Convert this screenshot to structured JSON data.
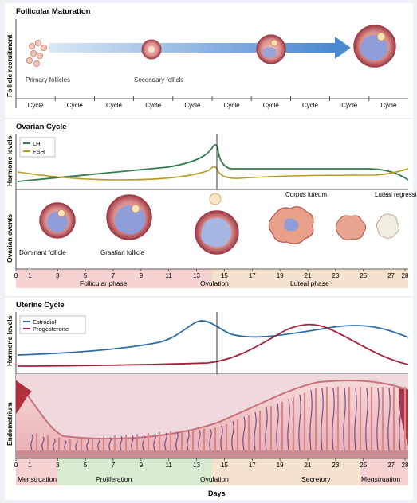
{
  "sections": {
    "follicular": {
      "title": "Follicular Maturation",
      "side_label": "Follicle recruitment",
      "labels": {
        "primary": "Primary follicles",
        "secondary": "Secondary follicle"
      },
      "cycles": [
        "Cycle",
        "Cycle",
        "Cycle",
        "Cycle",
        "Cycle",
        "Cycle",
        "Cycle",
        "Cycle",
        "Cycle",
        "Cycle"
      ]
    },
    "ovarian": {
      "title": "Ovarian Cycle",
      "hormone_label": "Hormone levels",
      "events_label": "Ovarian events",
      "legend": [
        {
          "name": "LH",
          "color": "#2f7d4f"
        },
        {
          "name": "FSH",
          "color": "#b99a1c"
        }
      ],
      "event_labels": {
        "dominant": "Dominant follicle",
        "graafian": "Graafian follicle",
        "corpus": "Corpus luteum",
        "luteal": "Luteal regression"
      },
      "phases": {
        "follicular": "Follicular phase",
        "ovulation": "Ovulation",
        "luteal": "Luteal phase"
      }
    },
    "uterine": {
      "title": "Uterine Cycle",
      "hormone_label": "Hormone levels",
      "endo_label": "Endometrium",
      "legend": [
        {
          "name": "Estradiol",
          "color": "#2c6da8"
        },
        {
          "name": "Progesterone",
          "color": "#a3213a"
        }
      ],
      "phases": {
        "menstruation1": "Menstruation",
        "proliferation": "Proliferation",
        "ovulation": "Ovulation",
        "secretory": "Secretory",
        "menstruation2": "Menstruation"
      }
    }
  },
  "day_ticks": [
    "0",
    "1",
    "3",
    "5",
    "7",
    "9",
    "11",
    "13",
    "15",
    "17",
    "19",
    "21",
    "23",
    "25",
    "27",
    "28"
  ],
  "days_label": "Days"
}
